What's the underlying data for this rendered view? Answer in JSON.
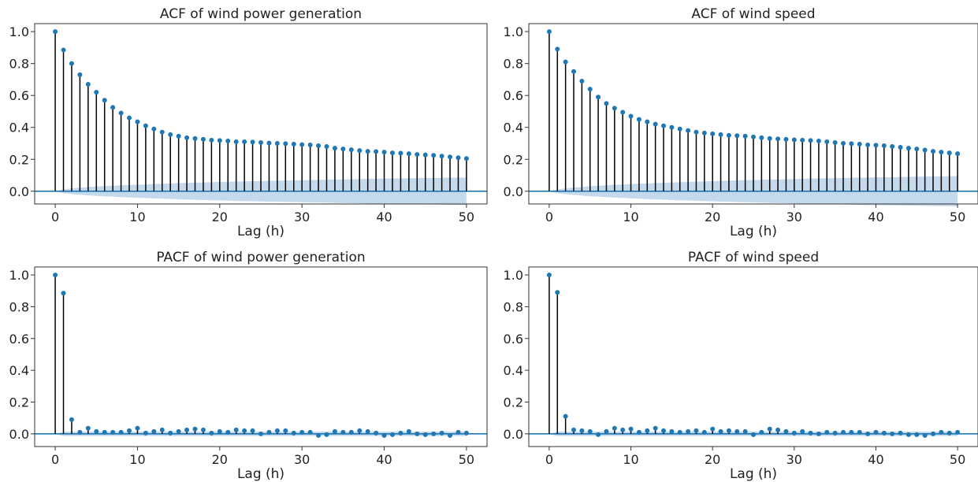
{
  "figure": {
    "background": "#ffffff",
    "stem_color": "#000000",
    "marker_color": "#1f77b4",
    "band_color": "#c5d9ec",
    "zero_line_color": "#1f77b4"
  },
  "chart_data": [
    {
      "type": "stem",
      "title": "ACF of wind power generation",
      "xlabel": "Lag (h)",
      "ylabel": "",
      "xlim": [
        -2.5,
        52.5
      ],
      "ylim": [
        -0.08,
        1.05
      ],
      "xticks": [
        "0",
        "10",
        "20",
        "30",
        "40",
        "50"
      ],
      "yticks": [
        "0.0",
        "0.2",
        "0.4",
        "0.6",
        "0.8",
        "1.0"
      ],
      "lags": [
        0,
        1,
        2,
        3,
        4,
        5,
        6,
        7,
        8,
        9,
        10,
        11,
        12,
        13,
        14,
        15,
        16,
        17,
        18,
        19,
        20,
        21,
        22,
        23,
        24,
        25,
        26,
        27,
        28,
        29,
        30,
        31,
        32,
        33,
        34,
        35,
        36,
        37,
        38,
        39,
        40,
        41,
        42,
        43,
        44,
        45,
        46,
        47,
        48,
        49,
        50
      ],
      "values": [
        1.0,
        0.885,
        0.8,
        0.73,
        0.67,
        0.62,
        0.57,
        0.525,
        0.49,
        0.46,
        0.435,
        0.41,
        0.39,
        0.37,
        0.355,
        0.345,
        0.335,
        0.33,
        0.325,
        0.32,
        0.318,
        0.315,
        0.31,
        0.31,
        0.308,
        0.305,
        0.302,
        0.3,
        0.298,
        0.295,
        0.292,
        0.29,
        0.285,
        0.28,
        0.27,
        0.265,
        0.26,
        0.255,
        0.25,
        0.248,
        0.245,
        0.24,
        0.238,
        0.235,
        0.23,
        0.228,
        0.225,
        0.22,
        0.215,
        0.21,
        0.205
      ],
      "confidence_band": [
        0.0,
        0.012,
        0.018,
        0.022,
        0.026,
        0.029,
        0.032,
        0.034,
        0.037,
        0.039,
        0.041,
        0.043,
        0.045,
        0.047,
        0.049,
        0.051,
        0.052,
        0.054,
        0.055,
        0.057,
        0.058,
        0.059,
        0.061,
        0.062,
        0.063,
        0.064,
        0.065,
        0.066,
        0.067,
        0.068,
        0.069,
        0.07,
        0.071,
        0.072,
        0.073,
        0.074,
        0.075,
        0.076,
        0.077,
        0.078,
        0.079,
        0.08,
        0.08,
        0.081,
        0.082,
        0.083,
        0.083,
        0.084,
        0.085,
        0.085,
        0.086
      ]
    },
    {
      "type": "stem",
      "title": "ACF of wind speed",
      "xlabel": "Lag (h)",
      "ylabel": "",
      "xlim": [
        -2.5,
        52.5
      ],
      "ylim": [
        -0.08,
        1.05
      ],
      "xticks": [
        "0",
        "10",
        "20",
        "30",
        "40",
        "50"
      ],
      "yticks": [
        "0.0",
        "0.2",
        "0.4",
        "0.6",
        "0.8",
        "1.0"
      ],
      "lags": [
        0,
        1,
        2,
        3,
        4,
        5,
        6,
        7,
        8,
        9,
        10,
        11,
        12,
        13,
        14,
        15,
        16,
        17,
        18,
        19,
        20,
        21,
        22,
        23,
        24,
        25,
        26,
        27,
        28,
        29,
        30,
        31,
        32,
        33,
        34,
        35,
        36,
        37,
        38,
        39,
        40,
        41,
        42,
        43,
        44,
        45,
        46,
        47,
        48,
        49,
        50
      ],
      "values": [
        1.0,
        0.89,
        0.81,
        0.75,
        0.69,
        0.64,
        0.59,
        0.55,
        0.52,
        0.495,
        0.47,
        0.45,
        0.435,
        0.42,
        0.41,
        0.4,
        0.39,
        0.38,
        0.37,
        0.365,
        0.36,
        0.355,
        0.35,
        0.348,
        0.345,
        0.34,
        0.335,
        0.33,
        0.328,
        0.325,
        0.322,
        0.32,
        0.318,
        0.315,
        0.31,
        0.305,
        0.3,
        0.298,
        0.295,
        0.29,
        0.288,
        0.285,
        0.28,
        0.275,
        0.27,
        0.265,
        0.258,
        0.25,
        0.245,
        0.24,
        0.235
      ],
      "confidence_band": [
        0.0,
        0.012,
        0.018,
        0.023,
        0.027,
        0.031,
        0.034,
        0.037,
        0.04,
        0.042,
        0.045,
        0.047,
        0.049,
        0.051,
        0.053,
        0.055,
        0.057,
        0.058,
        0.06,
        0.062,
        0.063,
        0.065,
        0.066,
        0.068,
        0.069,
        0.07,
        0.072,
        0.073,
        0.074,
        0.075,
        0.076,
        0.078,
        0.079,
        0.08,
        0.081,
        0.082,
        0.083,
        0.084,
        0.085,
        0.086,
        0.087,
        0.088,
        0.088,
        0.089,
        0.09,
        0.091,
        0.092,
        0.093,
        0.093,
        0.094,
        0.095
      ]
    },
    {
      "type": "stem",
      "title": "PACF of wind power generation",
      "xlabel": "Lag (h)",
      "ylabel": "",
      "xlim": [
        -2.5,
        52.5
      ],
      "ylim": [
        -0.08,
        1.05
      ],
      "xticks": [
        "0",
        "10",
        "20",
        "30",
        "40",
        "50"
      ],
      "yticks": [
        "0.0",
        "0.2",
        "0.4",
        "0.6",
        "0.8",
        "1.0"
      ],
      "lags": [
        0,
        1,
        2,
        3,
        4,
        5,
        6,
        7,
        8,
        9,
        10,
        11,
        12,
        13,
        14,
        15,
        16,
        17,
        18,
        19,
        20,
        21,
        22,
        23,
        24,
        25,
        26,
        27,
        28,
        29,
        30,
        31,
        32,
        33,
        34,
        35,
        36,
        37,
        38,
        39,
        40,
        41,
        42,
        43,
        44,
        45,
        46,
        47,
        48,
        49,
        50
      ],
      "values": [
        1.0,
        0.885,
        0.09,
        0.01,
        0.035,
        0.015,
        0.01,
        0.01,
        0.01,
        0.02,
        0.035,
        0.005,
        0.015,
        0.025,
        0.005,
        0.015,
        0.025,
        0.03,
        0.025,
        0.005,
        0.015,
        0.01,
        0.025,
        0.02,
        0.02,
        0.0,
        0.01,
        0.02,
        0.02,
        0.005,
        0.01,
        0.01,
        -0.01,
        -0.005,
        0.015,
        0.01,
        0.01,
        0.02,
        0.015,
        0.005,
        -0.01,
        -0.005,
        0.005,
        0.015,
        0.0,
        -0.005,
        0.0,
        0.005,
        -0.01,
        0.01,
        0.005
      ],
      "confidence_band": [
        0.0,
        0.014,
        0.014,
        0.014,
        0.014,
        0.014,
        0.014,
        0.014,
        0.014,
        0.014,
        0.014,
        0.014,
        0.014,
        0.014,
        0.014,
        0.014,
        0.014,
        0.014,
        0.014,
        0.014,
        0.014,
        0.014,
        0.014,
        0.014,
        0.014,
        0.014,
        0.014,
        0.014,
        0.014,
        0.014,
        0.014,
        0.014,
        0.014,
        0.014,
        0.014,
        0.014,
        0.014,
        0.014,
        0.014,
        0.014,
        0.014,
        0.014,
        0.014,
        0.014,
        0.014,
        0.014,
        0.014,
        0.014,
        0.014,
        0.014,
        0.014
      ]
    },
    {
      "type": "stem",
      "title": "PACF of wind speed",
      "xlabel": "Lag (h)",
      "ylabel": "",
      "xlim": [
        -2.5,
        52.5
      ],
      "ylim": [
        -0.08,
        1.05
      ],
      "xticks": [
        "0",
        "10",
        "20",
        "30",
        "40",
        "50"
      ],
      "yticks": [
        "0.0",
        "0.2",
        "0.4",
        "0.6",
        "0.8",
        "1.0"
      ],
      "lags": [
        0,
        1,
        2,
        3,
        4,
        5,
        6,
        7,
        8,
        9,
        10,
        11,
        12,
        13,
        14,
        15,
        16,
        17,
        18,
        19,
        20,
        21,
        22,
        23,
        24,
        25,
        26,
        27,
        28,
        29,
        30,
        31,
        32,
        33,
        34,
        35,
        36,
        37,
        38,
        39,
        40,
        41,
        42,
        43,
        44,
        45,
        46,
        47,
        48,
        49,
        50
      ],
      "values": [
        1.0,
        0.89,
        0.11,
        0.025,
        0.02,
        0.015,
        -0.005,
        0.015,
        0.035,
        0.025,
        0.03,
        0.01,
        0.02,
        0.035,
        0.02,
        0.015,
        0.01,
        0.015,
        0.02,
        0.01,
        0.03,
        0.015,
        0.02,
        0.015,
        0.015,
        -0.005,
        0.01,
        0.03,
        0.025,
        0.015,
        0.005,
        0.015,
        0.005,
        0.0,
        0.01,
        0.005,
        0.01,
        0.01,
        0.01,
        0.0,
        0.01,
        0.005,
        0.0,
        0.005,
        -0.005,
        -0.005,
        -0.01,
        0.0,
        0.01,
        0.005,
        0.01
      ],
      "confidence_band": [
        0.0,
        0.014,
        0.014,
        0.014,
        0.014,
        0.014,
        0.014,
        0.014,
        0.014,
        0.014,
        0.014,
        0.014,
        0.014,
        0.014,
        0.014,
        0.014,
        0.014,
        0.014,
        0.014,
        0.014,
        0.014,
        0.014,
        0.014,
        0.014,
        0.014,
        0.014,
        0.014,
        0.014,
        0.014,
        0.014,
        0.014,
        0.014,
        0.014,
        0.014,
        0.014,
        0.014,
        0.014,
        0.014,
        0.014,
        0.014,
        0.014,
        0.014,
        0.014,
        0.014,
        0.014,
        0.014,
        0.014,
        0.014,
        0.014,
        0.014,
        0.014
      ]
    }
  ]
}
